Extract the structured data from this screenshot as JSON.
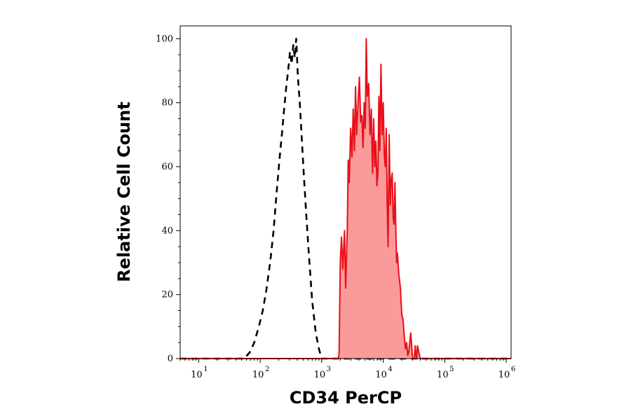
{
  "chart_data": {
    "type": "area",
    "xlabel": "CD34 PerCP",
    "ylabel": "Relative Cell Count",
    "xscale": "log",
    "xlim": [
      5,
      1200000
    ],
    "ylim": [
      0,
      104
    ],
    "x_ticks": [
      {
        "value": 10,
        "base": "10",
        "exp": "1"
      },
      {
        "value": 100,
        "base": "10",
        "exp": "2"
      },
      {
        "value": 1000,
        "base": "10",
        "exp": "3"
      },
      {
        "value": 10000,
        "base": "10",
        "exp": "4"
      },
      {
        "value": 100000,
        "base": "10",
        "exp": "5"
      },
      {
        "value": 1000000,
        "base": "10",
        "exp": "6"
      }
    ],
    "y_ticks": [
      "0",
      "20",
      "40",
      "60",
      "80",
      "100"
    ],
    "grid": false,
    "colors": {
      "isotype": "#000000",
      "stained_line": "#e8101a",
      "stained_fill": "#fb9a9a"
    },
    "series": [
      {
        "style": "dashed",
        "color": "#000000",
        "fill": false,
        "x": [
          5,
          55,
          68,
          80,
          95,
          110,
          125,
          145,
          165,
          185,
          205,
          225,
          245,
          265,
          285,
          305,
          325,
          345,
          365,
          385,
          410,
          440,
          470,
          510,
          560,
          620,
          700,
          800,
          900,
          1000,
          1200000
        ],
        "y": [
          0,
          0,
          2,
          5,
          10,
          15,
          21,
          30,
          40,
          52,
          62,
          70,
          78,
          85,
          90,
          96,
          92,
          98,
          94,
          100,
          88,
          80,
          70,
          58,
          45,
          32,
          18,
          8,
          3,
          0,
          0
        ]
      },
      {
        "style": "solid",
        "color": "#e8101a",
        "fill": true,
        "x": [
          5,
          1880,
          1920,
          2000,
          2100,
          2200,
          2350,
          2450,
          2600,
          2700,
          2800,
          2950,
          3100,
          3250,
          3400,
          3550,
          3700,
          3900,
          4100,
          4300,
          4500,
          4700,
          4900,
          5100,
          5300,
          5500,
          5800,
          6100,
          6400,
          6700,
          7000,
          7300,
          7600,
          7900,
          8200,
          8500,
          8800,
          9200,
          9600,
          10000,
          10400,
          10800,
          11200,
          11600,
          12000,
          12500,
          13000,
          13500,
          14000,
          14500,
          15000,
          15500,
          16000,
          16500,
          17000,
          18000,
          19000,
          20000,
          21000,
          22000,
          23000,
          24000,
          25000,
          26000,
          28000,
          30000,
          32000,
          33000,
          34000,
          35000,
          36000,
          37000,
          40000,
          1200000
        ],
        "y": [
          0,
          0,
          2,
          30,
          38,
          28,
          40,
          22,
          40,
          62,
          55,
          72,
          63,
          78,
          65,
          85,
          70,
          80,
          88,
          74,
          76,
          66,
          80,
          72,
          100,
          82,
          86,
          70,
          78,
          58,
          75,
          60,
          68,
          54,
          58,
          82,
          65,
          92,
          70,
          80,
          64,
          60,
          72,
          48,
          35,
          70,
          48,
          56,
          58,
          44,
          42,
          55,
          41,
          30,
          33,
          26,
          22,
          14,
          12,
          7,
          3,
          5,
          1,
          2,
          8,
          0,
          0,
          4,
          1,
          0,
          4,
          3,
          0,
          0
        ]
      }
    ]
  }
}
